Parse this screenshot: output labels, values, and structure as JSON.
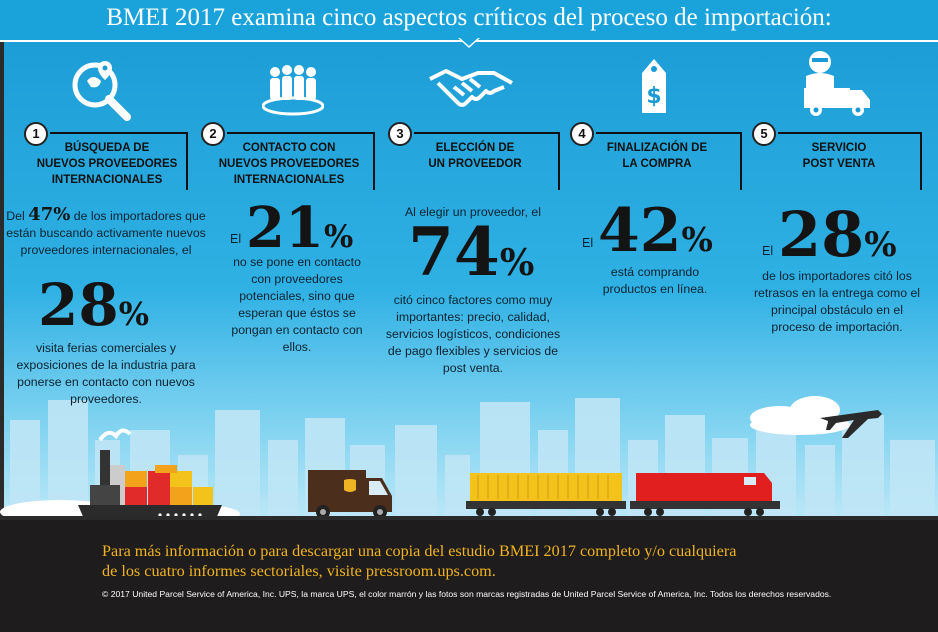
{
  "header": {
    "title": "BMEI 2017 examina cinco aspectos críticos del proceso de importación:"
  },
  "colors": {
    "sky": "#1aa0d8",
    "footer": "#1e1c1c",
    "accent_gold": "#f0b323",
    "ups_brown": "#4b2e1c"
  },
  "aspects": [
    {
      "number": "1",
      "icon": "search-globe-icon",
      "title_lines": [
        "BÚSQUEDA DE",
        "NUEVOS PROVEEDORES",
        "INTERNACIONALES"
      ],
      "pre_text_1": "Del",
      "stat_a": "47%",
      "text_a": "de los importadores que están buscando activamente nuevos proveedores internacionales, el",
      "stat_big": "28",
      "stat_big_pct": "%",
      "text_after": "visita ferias comerciales y exposiciones de la industria para ponerse en contacto con nuevos proveedores."
    },
    {
      "number": "2",
      "icon": "group-people-icon",
      "title_lines": [
        "CONTACTO CON",
        "NUEVOS PROVEEDORES",
        "INTERNACIONALES"
      ],
      "prefix": "El",
      "stat_big": "21",
      "stat_big_pct": "%",
      "text_after": "no se pone en contacto con proveedores potenciales, sino que esperan que éstos se pongan en contacto con ellos."
    },
    {
      "number": "3",
      "icon": "handshake-icon",
      "title_lines": [
        "ELECCIÓN DE",
        "UN PROVEEDOR"
      ],
      "text_before": "Al elegir un proveedor, el",
      "stat_big": "74",
      "stat_big_pct": "%",
      "text_after": "citó cinco factores como muy importantes: precio, calidad, servicios logísticos, condiciones de pago flexibles y servicios de post venta."
    },
    {
      "number": "4",
      "icon": "price-tag-icon",
      "title_lines": [
        "FINALIZACIÓN DE",
        "LA COMPRA"
      ],
      "prefix": "El",
      "stat_big": "42",
      "stat_big_pct": "%",
      "text_after": "está comprando productos en línea."
    },
    {
      "number": "5",
      "icon": "service-agent-truck-icon",
      "title_lines": [
        "SERVICIO",
        "POST VENTA"
      ],
      "prefix": "El",
      "stat_big": "28",
      "stat_big_pct": "%",
      "text_after": "de los importadores citó los retrasos en la entrega como el principal obstáculo en el proceso de importación."
    }
  ],
  "footer": {
    "more_info_line1": "Para más información o para descargar una copia del estudio BMEI 2017 completo y/o cualquiera",
    "more_info_line2": "de los cuatro informes sectoriales, visite pressroom.ups.com.",
    "copyright": "© 2017 United Parcel Service of America, Inc. UPS, la marca UPS, el color marrón y las fotos son marcas registradas de United Parcel Service of America, Inc. Todos los derechos reservados."
  }
}
